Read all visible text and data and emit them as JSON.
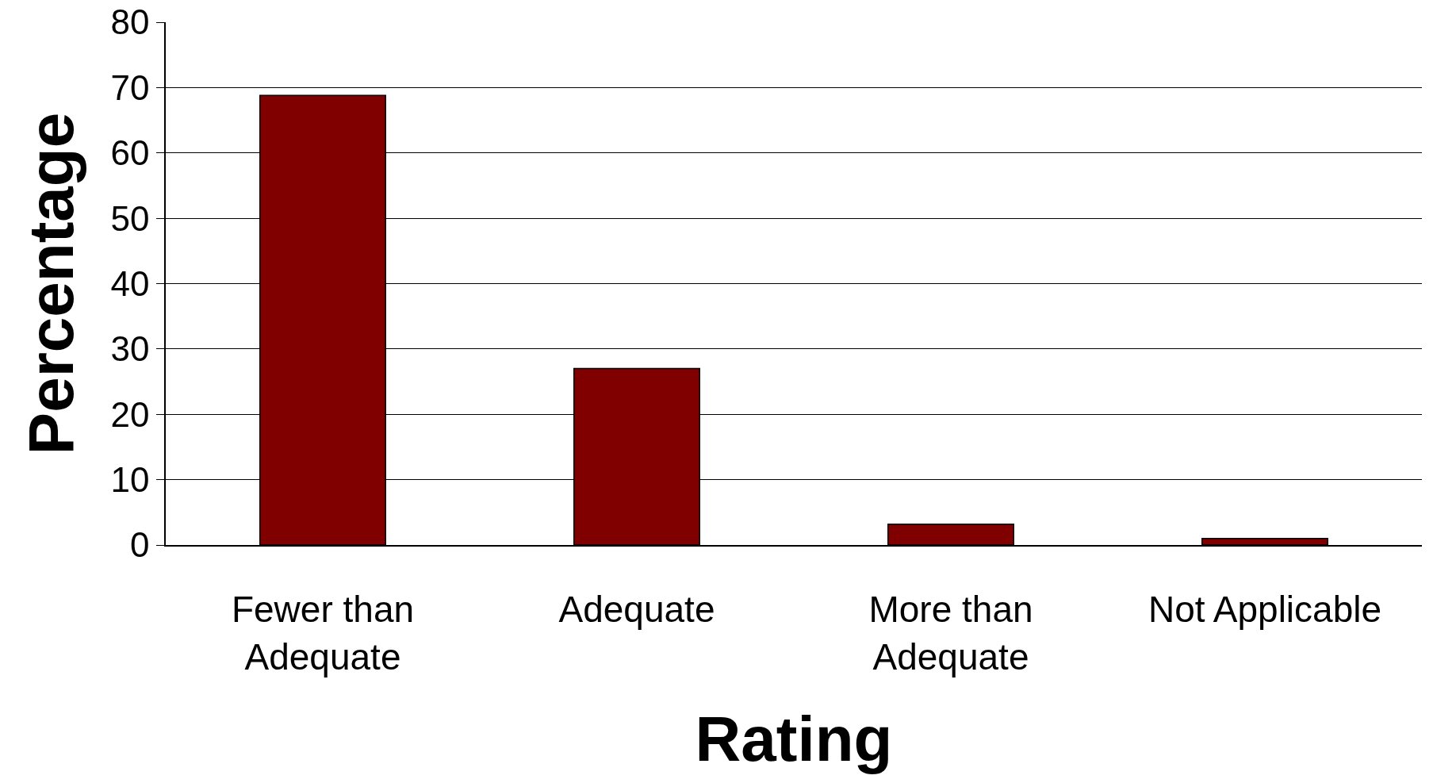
{
  "chart_data": {
    "type": "bar",
    "xlabel": "Rating",
    "ylabel": "Percentage",
    "categories": [
      "Fewer than Adequate",
      "Adequate",
      "More than Adequate",
      "Not Applicable"
    ],
    "values": [
      68.8,
      27,
      3.2,
      1
    ],
    "color": "#800000",
    "ylim": [
      0,
      80
    ],
    "yticks": [
      0,
      10,
      20,
      30,
      40,
      50,
      60,
      70,
      80
    ],
    "grid": "y"
  }
}
